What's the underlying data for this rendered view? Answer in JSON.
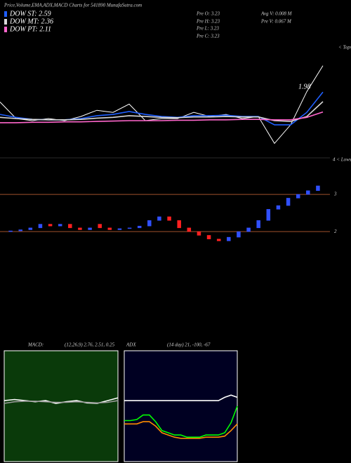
{
  "header": {
    "title": "Price,Volume,EMA,ADX,MACD Charts for 541890 MunafaSutra.com",
    "info": [
      "Pre O: 3.23",
      "Pre H: 3.23",
      "Pre L: 3.23",
      "Pre C: 3.23",
      "Avg V: 0.008 M",
      "Pre V: 0.067 M"
    ]
  },
  "chart_data": [
    {
      "type": "line",
      "ylim": [
        1.0,
        3.8
      ],
      "annotations": [
        "1.98",
        "< Tops",
        "4 < Lows"
      ],
      "series": [
        {
          "color": "#ffffff",
          "values": [
            2.35,
            1.95,
            1.9,
            1.95,
            1.9,
            2.0,
            2.15,
            2.1,
            2.3,
            1.9,
            1.95,
            1.95,
            2.1,
            2.0,
            2.05,
            1.95,
            2.0,
            1.35,
            1.8,
            2.6,
            3.23
          ]
        },
        {
          "name": "DOW ST: 2.59",
          "color": "#1f5fff",
          "values": [
            2.05,
            1.98,
            1.93,
            1.92,
            1.92,
            1.95,
            2.02,
            2.05,
            2.12,
            2.05,
            2.0,
            1.98,
            2.02,
            2.02,
            2.03,
            2.0,
            2.0,
            1.8,
            1.8,
            2.1,
            2.59
          ]
        },
        {
          "name": "DOW MT: 2.36",
          "color": "#d8d8d8",
          "values": [
            1.98,
            1.95,
            1.93,
            1.92,
            1.92,
            1.93,
            1.96,
            1.98,
            2.02,
            2.0,
            1.98,
            1.97,
            1.99,
            1.99,
            2.0,
            1.99,
            1.99,
            1.9,
            1.88,
            2.0,
            2.36
          ]
        },
        {
          "name": "DOW PT: 2.11",
          "color": "#ff66cc",
          "values": [
            1.85,
            1.85,
            1.86,
            1.86,
            1.87,
            1.87,
            1.88,
            1.89,
            1.9,
            1.9,
            1.9,
            1.91,
            1.91,
            1.92,
            1.92,
            1.93,
            1.93,
            1.92,
            1.92,
            1.98,
            2.11
          ]
        }
      ]
    },
    {
      "type": "candlestick",
      "ylim": [
        1.72,
        3.7
      ],
      "yticks": [
        2,
        3
      ],
      "up_color": "#3050ff",
      "down_color": "#ff2020",
      "line_color": "#a0522d",
      "open": [
        2.0,
        2.02,
        2.05,
        2.1,
        2.2,
        2.15,
        2.2,
        2.1,
        2.05,
        2.2,
        2.1,
        2.05,
        2.08,
        2.1,
        2.15,
        2.3,
        2.4,
        2.3,
        2.1,
        2.0,
        1.9,
        1.8,
        1.75,
        1.85,
        2.0,
        2.1,
        2.3,
        2.6,
        2.7,
        2.9,
        3.0,
        3.1
      ],
      "close": [
        2.02,
        2.05,
        2.1,
        2.2,
        2.15,
        2.2,
        2.1,
        2.05,
        2.1,
        2.1,
        2.05,
        2.08,
        2.1,
        2.15,
        2.3,
        2.4,
        2.3,
        2.1,
        2.0,
        1.9,
        1.8,
        1.75,
        1.85,
        2.0,
        2.1,
        2.3,
        2.6,
        2.7,
        2.9,
        3.0,
        3.1,
        3.23
      ]
    },
    {
      "type": "line",
      "title": "MACD:",
      "subtitle": "(12,26,9) 2.76, 2.51, 0.25",
      "ylim": [
        -1,
        1
      ],
      "background": "#0a3a0a",
      "series": [
        {
          "color": "#ffffff",
          "values": [
            0.1,
            0.12,
            0.1,
            0.08,
            0.1,
            0.05,
            0.08,
            0.1,
            0.06,
            0.05,
            0.1,
            0.15
          ]
        },
        {
          "color": "#9a9a9a",
          "values": [
            0.05,
            0.08,
            0.09,
            0.09,
            0.08,
            0.07,
            0.07,
            0.08,
            0.07,
            0.06,
            0.07,
            0.1
          ]
        }
      ]
    },
    {
      "type": "line",
      "title": "ADX",
      "subtitle": "(14 day) 21, -100, -67",
      "ylim": [
        0,
        100
      ],
      "background": "#000022",
      "series": [
        {
          "color": "#ffffff",
          "values": [
            55,
            55,
            55,
            55,
            55,
            55,
            55,
            55,
            55,
            55,
            55,
            55,
            55,
            55,
            55,
            55,
            58,
            60,
            58
          ]
        },
        {
          "color": "#00ff00",
          "values": [
            37,
            37,
            38,
            42,
            42,
            36,
            28,
            26,
            24,
            24,
            22,
            22,
            22,
            24,
            24,
            24,
            26,
            35,
            50
          ]
        },
        {
          "color": "#ff8c00",
          "values": [
            34,
            34,
            34,
            36,
            36,
            32,
            26,
            24,
            22,
            21,
            21,
            21,
            21,
            22,
            22,
            22,
            23,
            28,
            34
          ]
        }
      ]
    }
  ]
}
